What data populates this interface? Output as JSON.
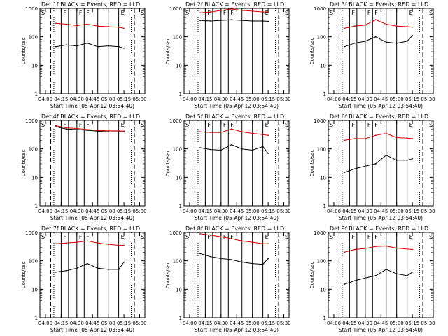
{
  "figure": {
    "x_tick_labels": [
      "04:00",
      "04:15",
      "04:30",
      "04:45",
      "05:00",
      "05:15",
      "05:30"
    ],
    "y_tick_labels": [
      "1",
      "10",
      "100",
      "1000"
    ],
    "xlabel": "Start Time (05-Apr-12 03:54:40)",
    "ylabel": "Counts/sec",
    "region_markers": [
      "S",
      "F",
      "F",
      "F",
      "E",
      "S"
    ]
  },
  "chart_data": [
    {
      "type": "line",
      "title": "Det 1f BLACK = Events, RED = LLD",
      "xlabel": "Start Time (05-Apr-12 03:54:40)",
      "ylabel": "Counts/sec",
      "yscale": "log",
      "ylim": [
        1,
        1000
      ],
      "xlim": [
        "03:54:40",
        "05:35:00"
      ],
      "x": [
        "04:10",
        "04:20",
        "04:30",
        "04:40",
        "04:50",
        "05:00",
        "05:10",
        "05:15"
      ],
      "series": [
        {
          "name": "Events",
          "color": "#000000",
          "values": [
            45,
            52,
            48,
            60,
            45,
            48,
            45,
            40
          ]
        },
        {
          "name": "LLD",
          "color": "#d40000",
          "values": [
            300,
            280,
            250,
            280,
            240,
            230,
            220,
            200
          ]
        }
      ]
    },
    {
      "type": "line",
      "title": "Det 2f BLACK = Events, RED = LLD",
      "xlabel": "Start Time (05-Apr-12 03:54:40)",
      "ylabel": "Counts/sec",
      "yscale": "log",
      "ylim": [
        1,
        1000
      ],
      "xlim": [
        "03:54:40",
        "05:35:00"
      ],
      "x": [
        "04:10",
        "04:20",
        "04:30",
        "04:40",
        "04:50",
        "05:00",
        "05:10",
        "05:15"
      ],
      "series": [
        {
          "name": "Events",
          "color": "#000000",
          "values": [
            380,
            360,
            380,
            400,
            380,
            360,
            360,
            350
          ]
        },
        {
          "name": "LLD",
          "color": "#d40000",
          "values": [
            700,
            750,
            850,
            950,
            850,
            800,
            750,
            750
          ]
        }
      ]
    },
    {
      "type": "line",
      "title": "Det 3f BLACK = Events, RED = LLD",
      "xlabel": "Start Time (05-Apr-12 03:54:40)",
      "ylabel": "Counts/sec",
      "yscale": "log",
      "ylim": [
        1,
        1000
      ],
      "xlim": [
        "03:54:40",
        "05:35:00"
      ],
      "x": [
        "04:10",
        "04:20",
        "04:30",
        "04:40",
        "04:50",
        "05:00",
        "05:10",
        "05:15"
      ],
      "series": [
        {
          "name": "Events",
          "color": "#000000",
          "values": [
            45,
            60,
            70,
            100,
            65,
            60,
            70,
            110
          ]
        },
        {
          "name": "LLD",
          "color": "#d40000",
          "values": [
            200,
            240,
            260,
            400,
            280,
            240,
            230,
            220
          ]
        }
      ]
    },
    {
      "type": "line",
      "title": "Det 4f BLACK = Events, RED = LLD",
      "xlabel": "Start Time (05-Apr-12 03:54:40)",
      "ylabel": "Counts/sec",
      "yscale": "log",
      "ylim": [
        1,
        1000
      ],
      "xlim": [
        "03:54:40",
        "05:35:00"
      ],
      "x": [
        "04:10",
        "04:20",
        "04:30",
        "04:40",
        "04:50",
        "05:00",
        "05:10",
        "05:15"
      ],
      "series": [
        {
          "name": "Events",
          "color": "#000000",
          "values": [
            600,
            500,
            480,
            450,
            420,
            400,
            400,
            400
          ]
        },
        {
          "name": "LLD",
          "color": "#d40000",
          "values": [
            650,
            550,
            520,
            480,
            450,
            430,
            430,
            420
          ]
        }
      ]
    },
    {
      "type": "line",
      "title": "Det 5f BLACK = Events, RED = LLD",
      "xlabel": "Start Time (05-Apr-12 03:54:40)",
      "ylabel": "Counts/sec",
      "yscale": "log",
      "ylim": [
        1,
        1000
      ],
      "xlim": [
        "03:54:40",
        "05:35:00"
      ],
      "x": [
        "04:10",
        "04:20",
        "04:30",
        "04:40",
        "04:50",
        "05:00",
        "05:10",
        "05:15"
      ],
      "series": [
        {
          "name": "Events",
          "color": "#000000",
          "values": [
            110,
            95,
            90,
            140,
            100,
            90,
            120,
            70
          ]
        },
        {
          "name": "LLD",
          "color": "#d40000",
          "values": [
            400,
            380,
            380,
            500,
            400,
            350,
            320,
            300
          ]
        }
      ]
    },
    {
      "type": "line",
      "title": "Det 6f BLACK = Events, RED = LLD",
      "xlabel": "Start Time (05-Apr-12 03:54:40)",
      "ylabel": "Counts/sec",
      "yscale": "log",
      "ylim": [
        1,
        1000
      ],
      "xlim": [
        "03:54:40",
        "05:35:00"
      ],
      "x": [
        "04:10",
        "04:20",
        "04:30",
        "04:40",
        "04:50",
        "05:00",
        "05:10",
        "05:15"
      ],
      "series": [
        {
          "name": "Events",
          "color": "#000000",
          "values": [
            15,
            20,
            25,
            30,
            60,
            40,
            40,
            45
          ]
        },
        {
          "name": "LLD",
          "color": "#d40000",
          "values": [
            200,
            230,
            230,
            300,
            350,
            250,
            240,
            230
          ]
        }
      ]
    },
    {
      "type": "line",
      "title": "Det 7f BLACK = Events, RED = LLD",
      "xlabel": "Start Time (05-Apr-12 03:54:40)",
      "ylabel": "Counts/sec",
      "yscale": "log",
      "ylim": [
        1,
        1000
      ],
      "xlim": [
        "03:54:40",
        "05:35:00"
      ],
      "x": [
        "04:10",
        "04:20",
        "04:30",
        "04:40",
        "04:50",
        "05:00",
        "05:10",
        "05:15"
      ],
      "series": [
        {
          "name": "Events",
          "color": "#000000",
          "values": [
            40,
            45,
            55,
            80,
            55,
            50,
            50,
            90
          ]
        },
        {
          "name": "LLD",
          "color": "#d40000",
          "values": [
            400,
            420,
            450,
            500,
            420,
            380,
            350,
            350
          ]
        }
      ]
    },
    {
      "type": "line",
      "title": "Det 8f BLACK = Events, RED = LLD",
      "xlabel": "Start Time (05-Apr-12 03:54:40)",
      "ylabel": "Counts/sec",
      "yscale": "log",
      "ylim": [
        1,
        1000
      ],
      "xlim": [
        "03:54:40",
        "05:35:00"
      ],
      "x": [
        "04:10",
        "04:20",
        "04:30",
        "04:40",
        "04:50",
        "05:00",
        "05:10",
        "05:15"
      ],
      "series": [
        {
          "name": "Events",
          "color": "#000000",
          "values": [
            180,
            140,
            120,
            110,
            90,
            80,
            75,
            120
          ]
        },
        {
          "name": "LLD",
          "color": "#d40000",
          "values": [
            900,
            800,
            700,
            600,
            500,
            450,
            400,
            400
          ]
        }
      ]
    },
    {
      "type": "line",
      "title": "Det 9f BLACK = Events, RED = LLD",
      "xlabel": "Start Time (05-Apr-12 03:54:40)",
      "ylabel": "Counts/sec",
      "yscale": "log",
      "ylim": [
        1,
        1000
      ],
      "xlim": [
        "03:54:40",
        "05:35:00"
      ],
      "x": [
        "04:10",
        "04:20",
        "04:30",
        "04:40",
        "04:50",
        "05:00",
        "05:10",
        "05:15"
      ],
      "series": [
        {
          "name": "Events",
          "color": "#000000",
          "values": [
            15,
            20,
            25,
            30,
            50,
            35,
            30,
            40
          ]
        },
        {
          "name": "LLD",
          "color": "#d40000",
          "values": [
            200,
            250,
            270,
            320,
            330,
            280,
            260,
            250
          ]
        }
      ]
    }
  ]
}
